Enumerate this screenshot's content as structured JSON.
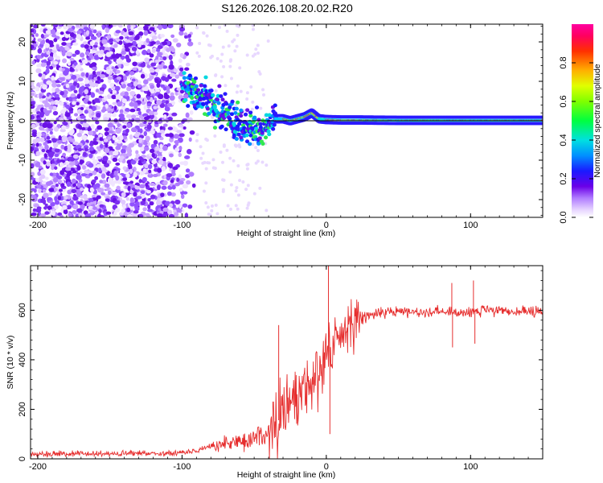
{
  "title": "S126.2026.108.20.02.R20",
  "chart_data": [
    {
      "type": "heatmap",
      "title": "",
      "xlabel": "Height of straight line (km)",
      "ylabel": "Frequency (Hz)",
      "xlim": [
        -205,
        150
      ],
      "ylim": [
        -24.5,
        24.5
      ],
      "xticks": [
        -200,
        -100,
        0,
        100
      ],
      "xtick_labels": [
        "-200",
        "-100",
        "0",
        "100"
      ],
      "yticks": [
        -20,
        -10,
        0,
        10,
        20
      ],
      "ytick_labels": [
        "-20",
        "-10",
        "0",
        "10",
        "20"
      ],
      "carrier_line_hz": 0,
      "frequency_track": {
        "x": [
          -205,
          -100,
          -95,
          -90,
          -85,
          -80,
          -75,
          -70,
          -65,
          -60,
          -55,
          -50,
          -45,
          -40,
          -35,
          -30,
          -25,
          -20,
          -15,
          -10,
          -5,
          0,
          10,
          20,
          50,
          80,
          100,
          150
        ],
        "y": [
          0,
          10,
          8,
          7,
          6,
          5,
          3,
          2,
          0,
          -1,
          -2,
          -2.5,
          -3,
          -1,
          0.5,
          0.5,
          0,
          0.5,
          1,
          2,
          0.5,
          0.3,
          0.2,
          0.2,
          0.1,
          0.1,
          0.1,
          0.1
        ]
      },
      "colorbar": {
        "label": "Normalized spectral amplitude",
        "range": [
          0,
          1
        ],
        "ticks": [
          0.0,
          0.2,
          0.4,
          0.6,
          0.8
        ],
        "tick_labels": [
          "0.0",
          "0.2",
          "0.4",
          "0.6",
          "0.8"
        ]
      }
    },
    {
      "type": "line",
      "title": "",
      "xlabel": "Height of straight line (km)",
      "ylabel": "SNR (10 * v/v)",
      "xlim": [
        -205,
        150
      ],
      "ylim": [
        0,
        780
      ],
      "xticks": [
        -200,
        -100,
        0,
        100
      ],
      "xtick_labels": [
        "-200",
        "-100",
        "0",
        "100"
      ],
      "yticks": [
        0,
        200,
        400,
        600
      ],
      "ytick_labels": [
        "0",
        "200",
        "400",
        "600"
      ],
      "series": [
        {
          "name": "SNR",
          "color": "#e62e2e",
          "x": [
            -205,
            -150,
            -100,
            -90,
            -80,
            -70,
            -60,
            -50,
            -45,
            -40,
            -35,
            -30,
            -25,
            -20,
            -15,
            -10,
            -5,
            0,
            5,
            10,
            15,
            20,
            25,
            30,
            40,
            50,
            60,
            80,
            85,
            90,
            100,
            110,
            120,
            150
          ],
          "y": [
            20,
            20,
            25,
            35,
            50,
            60,
            70,
            80,
            90,
            110,
            140,
            180,
            210,
            250,
            290,
            320,
            370,
            420,
            460,
            500,
            530,
            555,
            570,
            580,
            590,
            595,
            595,
            595,
            590,
            590,
            595,
            600,
            595,
            590
          ]
        }
      ],
      "spikes": [
        {
          "x": 1.5,
          "y": 780
        },
        {
          "x": 2.5,
          "y": 100
        },
        {
          "x": -33,
          "y": 540
        },
        {
          "x": 87,
          "y": 710
        },
        {
          "x": 87.5,
          "y": 450
        },
        {
          "x": 102,
          "y": 720
        },
        {
          "x": 103,
          "y": 465
        }
      ]
    }
  ]
}
